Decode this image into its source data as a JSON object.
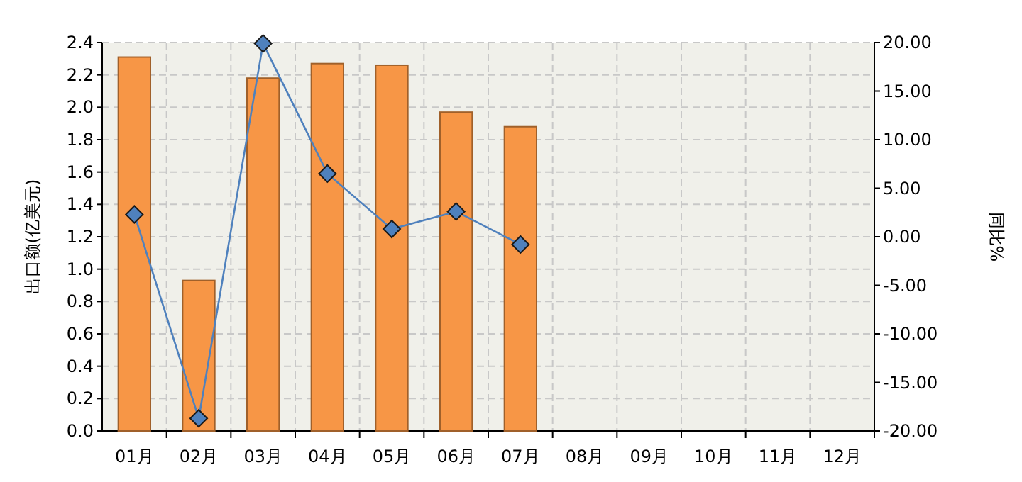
{
  "chart_data": {
    "type": "bar",
    "ylabel": "出口额(亿美元)",
    "y2label": "同比%",
    "categories": [
      "01月",
      "02月",
      "03月",
      "04月",
      "05月",
      "06月",
      "07月",
      "08月",
      "09月",
      "10月",
      "11月",
      "12月"
    ],
    "series": [
      {
        "color": "#f79646",
        "values": [
          2.31,
          0.93,
          2.18,
          2.27,
          2.26,
          1.97,
          1.88,
          null,
          null,
          null,
          null,
          null
        ]
      },
      {
        "type": "line",
        "axis": "y2",
        "color": "#4f81bd",
        "marker": "diamond",
        "values": [
          2.3,
          -18.7,
          19.9,
          6.5,
          0.8,
          2.6,
          -0.8,
          null,
          null,
          null,
          null,
          null
        ]
      }
    ],
    "ylim": [
      0,
      2.4
    ],
    "yticks": [
      {
        "value": 0,
        "label": "0.0"
      },
      {
        "value": 0.2,
        "label": "0.2"
      },
      {
        "value": 0.4,
        "label": "0.4"
      },
      {
        "value": 0.6,
        "label": "0.6"
      },
      {
        "value": 0.8,
        "label": "0.8"
      },
      {
        "value": 1,
        "label": "1.0"
      },
      {
        "value": 1.2,
        "label": "1.2"
      },
      {
        "value": 1.4,
        "label": "1.4"
      },
      {
        "value": 1.6,
        "label": "1.6"
      },
      {
        "value": 1.8,
        "label": "1.8"
      },
      {
        "value": 2,
        "label": "2.0"
      },
      {
        "value": 2.2,
        "label": "2.2"
      },
      {
        "value": 2.4,
        "label": "2.4"
      }
    ],
    "y2lim": [
      -20,
      20
    ],
    "y2ticks": [
      {
        "value": -20,
        "label": "-20.00"
      },
      {
        "value": -15,
        "label": "-15.00"
      },
      {
        "value": -10,
        "label": "-10.00"
      },
      {
        "value": -5,
        "label": "-5.00"
      },
      {
        "value": 0,
        "label": "0.00"
      },
      {
        "value": 5,
        "label": "5.00"
      },
      {
        "value": 10,
        "label": "10.00"
      },
      {
        "value": 15,
        "label": "15.00"
      },
      {
        "value": 20,
        "label": "20.00"
      }
    ],
    "grid": true
  }
}
